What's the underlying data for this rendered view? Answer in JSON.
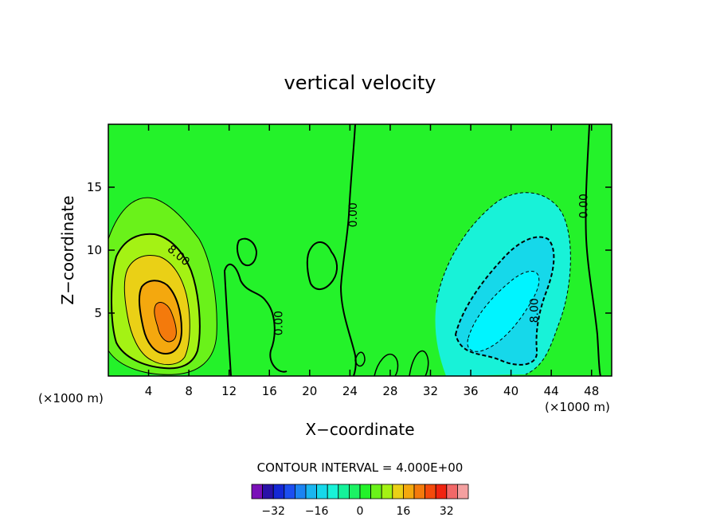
{
  "chart_data": {
    "type": "heatmap",
    "title": "vertical velocity",
    "xlabel": "X−coordinate",
    "ylabel": "Z−coordinate",
    "x_unit_left": "(×1000 m)",
    "x_unit_right": "(×1000 m)",
    "xlim": [
      0,
      50
    ],
    "ylim": [
      0,
      20
    ],
    "x_ticks": [
      4,
      8,
      12,
      16,
      20,
      24,
      28,
      32,
      36,
      40,
      44,
      48
    ],
    "y_ticks": [
      5,
      10,
      15
    ],
    "contour_interval_label": "CONTOUR INTERVAL = 4.000E+00",
    "contour_interval": 4,
    "contour_labels": [
      {
        "text": "8.00",
        "x": 7.0,
        "y": 9.6
      },
      {
        "text": "0.00",
        "x": 24.3,
        "y": 12.8
      },
      {
        "text": "0.00",
        "x": 16.9,
        "y": 4.2
      },
      {
        "text": "0.00",
        "x": 47.2,
        "y": 13.5
      },
      {
        "text": "8.00",
        "x": 42.3,
        "y": 5.2
      }
    ],
    "field_features": [
      {
        "sign": "positive",
        "center": [
          5.5,
          4.6
        ],
        "peak_level": 24
      },
      {
        "sign": "negative",
        "center": [
          39.0,
          6.0
        ],
        "peak_level": -12
      }
    ],
    "colorbar": {
      "levels": [
        -36,
        -32,
        -28,
        -24,
        -20,
        -16,
        -12,
        -8,
        -4,
        0,
        4,
        8,
        12,
        16,
        20,
        24,
        28,
        32,
        36
      ],
      "colors": [
        "#7a10b8",
        "#2a12a8",
        "#1428d6",
        "#1c4ef0",
        "#1c84f2",
        "#1ab6f0",
        "#16d8ea",
        "#18f2d8",
        "#14f29a",
        "#1cf264",
        "#24f22a",
        "#6af21a",
        "#a4f214",
        "#ead016",
        "#f4a80e",
        "#f47a0c",
        "#f44a0c",
        "#f02410",
        "#f26868",
        "#f4a0a0"
      ],
      "tick_labels": [
        "−32",
        "−16",
        "0",
        "16",
        "32"
      ],
      "tick_values": [
        -32,
        -16,
        0,
        16,
        32
      ]
    },
    "grid": false
  }
}
